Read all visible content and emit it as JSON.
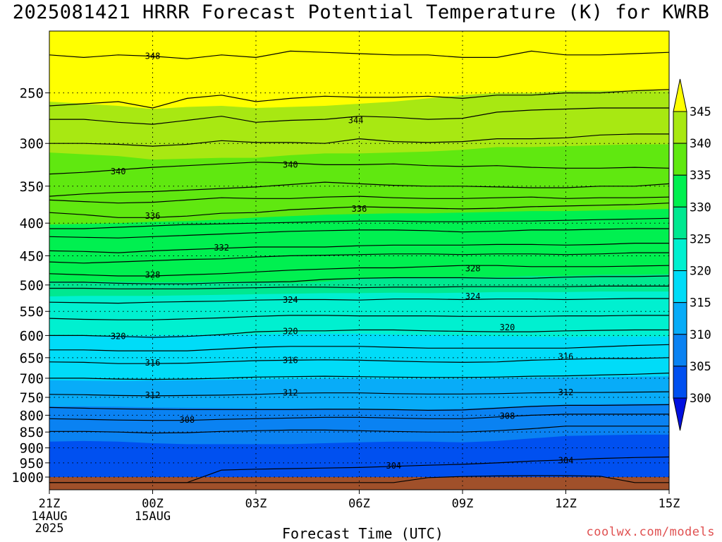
{
  "chart_data": {
    "type": "contour",
    "title": "2025081421 HRRR Forecast Potential Temperature (K) for KWRB",
    "xlabel": "Forecast Time (UTC)",
    "credit": "coolwx.com/models",
    "x_ticks": [
      {
        "hour": 0,
        "label": "21Z",
        "sub": [
          "14AUG",
          "2025"
        ]
      },
      {
        "hour": 3,
        "label": "00Z",
        "sub": [
          "15AUG"
        ]
      },
      {
        "hour": 6,
        "label": "03Z",
        "sub": []
      },
      {
        "hour": 9,
        "label": "06Z",
        "sub": []
      },
      {
        "hour": 12,
        "label": "09Z",
        "sub": []
      },
      {
        "hour": 15,
        "label": "12Z",
        "sub": []
      },
      {
        "hour": 18,
        "label": "15Z",
        "sub": []
      }
    ],
    "xlim": [
      0,
      18
    ],
    "y_ticks": [
      250,
      300,
      350,
      400,
      450,
      500,
      550,
      600,
      650,
      700,
      750,
      800,
      850,
      900,
      950,
      1000
    ],
    "ylim_hpa": [
      200,
      1020
    ],
    "y_scale": "log",
    "colorbar": {
      "levels": [
        300,
        305,
        310,
        315,
        320,
        325,
        330,
        335,
        340,
        345
      ],
      "colors": [
        "#0010e0",
        "#0050f0",
        "#0a82f2",
        "#08acf8",
        "#00dcf8",
        "#00f0d0",
        "#00e890",
        "#00f050",
        "#60e810",
        "#a8e812",
        "#ffff00"
      ],
      "under_color": "#0010e0",
      "over_color": "#ffff00"
    },
    "bands": [
      {
        "label": 345,
        "pressure": [
          258,
          260,
          262,
          265,
          263,
          262,
          264,
          263,
          262,
          260,
          258,
          255,
          252,
          250,
          250,
          248,
          248,
          248,
          248
        ]
      },
      {
        "label": 340,
        "pressure": [
          310,
          312,
          314,
          318,
          317,
          316,
          316,
          313,
          311,
          311,
          310,
          309,
          307,
          304,
          304,
          303,
          302,
          301,
          301
        ]
      },
      {
        "label": 335,
        "pressure": [
          402,
          401,
          400,
          398,
          397,
          395,
          392,
          390,
          388,
          387,
          386,
          386,
          385,
          384,
          383,
          383,
          382,
          381,
          380
        ]
      },
      {
        "label": 330,
        "pressure": [
          493,
          494,
          494,
          495,
          495,
          494,
          494,
          496,
          494,
          488,
          486,
          486,
          486,
          486,
          484,
          484,
          482,
          482,
          481
        ]
      },
      {
        "label": 325,
        "pressure": [
          521,
          520,
          520,
          520,
          519,
          518,
          517,
          516,
          515,
          515,
          514,
          515,
          514,
          513,
          513,
          513,
          512,
          512,
          512
        ]
      },
      {
        "label": 320,
        "pressure": [
          600,
          600,
          600,
          600,
          599,
          598,
          598,
          596,
          596,
          596,
          598,
          599,
          600,
          601,
          602,
          603,
          602,
          602,
          602
        ]
      },
      {
        "label": 315,
        "pressure": [
          705,
          706,
          707,
          706,
          705,
          704,
          703,
          702,
          701,
          701,
          702,
          702,
          702,
          700,
          699,
          698,
          697,
          696,
          695
        ]
      },
      {
        "label": 310,
        "pressure": [
          775,
          775,
          776,
          778,
          779,
          780,
          781,
          781,
          781,
          782,
          784,
          784,
          782,
          778,
          773,
          770,
          769,
          768,
          768
        ]
      },
      {
        "label": 305,
        "pressure": [
          880,
          878,
          880,
          885,
          888,
          888,
          888,
          888,
          885,
          882,
          880,
          880,
          882,
          878,
          870,
          862,
          860,
          858,
          858
        ]
      }
    ],
    "contours": [
      {
        "level": 348,
        "label_at": 3.0,
        "pressure": [
          218,
          220,
          218,
          219,
          221,
          218,
          220,
          215,
          216,
          217,
          218,
          218,
          220,
          220,
          215,
          218,
          218,
          217,
          216
        ]
      },
      {
        "level": 346,
        "pressure": [
          262,
          260,
          258,
          264,
          255,
          252,
          258,
          255,
          253,
          254,
          254,
          253,
          255,
          252,
          252,
          250,
          250,
          248,
          247
        ]
      },
      {
        "level": 344,
        "label_at": 8.8,
        "pressure": [
          275,
          275,
          278,
          280,
          276,
          272,
          278,
          276,
          275,
          272,
          273,
          275,
          274,
          268,
          266,
          265,
          264,
          264,
          264
        ]
      },
      {
        "level": 342,
        "pressure": [
          300,
          300,
          301,
          303,
          301,
          297,
          299,
          299,
          300,
          295,
          298,
          299,
          298,
          295,
          295,
          294,
          291,
          290,
          290
        ]
      },
      {
        "level": 340,
        "label_at": 2.0,
        "pressure": [
          335,
          333,
          330,
          327,
          325,
          323,
          321,
          322,
          324,
          324,
          323,
          325,
          326,
          325,
          327,
          328,
          328,
          327,
          328
        ]
      },
      {
        "level": 340,
        "label_at": 6.8,
        "pressure": [
          363,
          360,
          358,
          357,
          355,
          353,
          351,
          348,
          345,
          347,
          349,
          350,
          350,
          351,
          352,
          352,
          350,
          350,
          347
        ]
      },
      {
        "level": 338,
        "pressure": [
          368,
          370,
          372,
          371,
          368,
          365,
          366,
          366,
          364,
          363,
          365,
          366,
          366,
          365,
          364,
          366,
          365,
          365,
          364
        ]
      },
      {
        "level": 336,
        "label_at": 9.0,
        "pressure": [
          385,
          388,
          392,
          392,
          390,
          386,
          385,
          381,
          379,
          377,
          378,
          379,
          380,
          379,
          377,
          376,
          375,
          374,
          372
        ]
      },
      {
        "level": 334,
        "label_at": 3.0,
        "pressure": [
          408,
          408,
          406,
          404,
          402,
          401,
          400,
          399,
          398,
          397,
          397,
          398,
          398,
          397,
          397,
          396,
          395,
          394,
          393
        ]
      },
      {
        "level": 332,
        "pressure": [
          420,
          421,
          422,
          420,
          418,
          416,
          414,
          412,
          411,
          410,
          410,
          411,
          413,
          412,
          410,
          410,
          409,
          408,
          408
        ]
      },
      {
        "level": 332,
        "label_at": 5.0,
        "pressure": [
          442,
          443,
          445,
          442,
          440,
          438,
          436,
          436,
          436,
          434,
          433,
          433,
          433,
          432,
          432,
          433,
          432,
          430,
          430
        ]
      },
      {
        "level": 330,
        "pressure": [
          460,
          462,
          460,
          458,
          456,
          455,
          452,
          450,
          449,
          448,
          447,
          447,
          448,
          447,
          447,
          448,
          447,
          445,
          445
        ]
      },
      {
        "level": 328,
        "label_at": 3.0,
        "pressure": [
          480,
          482,
          484,
          484,
          482,
          480,
          477,
          474,
          472,
          470,
          470,
          468,
          466,
          466,
          468,
          468,
          468,
          467,
          466
        ]
      },
      {
        "level": 326,
        "pressure": [
          495,
          495,
          497,
          498,
          498,
          496,
          495,
          494,
          490,
          488,
          487,
          487,
          487,
          488,
          488,
          486,
          485,
          485,
          484
        ]
      },
      {
        "level": 326,
        "pressure": [
          506,
          506,
          507,
          507,
          507,
          506,
          505,
          504,
          504,
          505,
          504,
          504,
          503,
          503,
          503,
          503,
          502,
          502,
          502
        ]
      },
      {
        "level": 324,
        "label_at": 7.0,
        "pressure": [
          532,
          533,
          534,
          532,
          531,
          530,
          528,
          527,
          527,
          528,
          526,
          526,
          527,
          526,
          526,
          527,
          526,
          525,
          525
        ]
      },
      {
        "level": 322,
        "pressure": [
          564,
          566,
          567,
          567,
          565,
          563,
          560,
          558,
          558,
          559,
          559,
          559,
          560,
          560,
          560,
          559,
          559,
          558,
          558
        ]
      },
      {
        "level": 320,
        "label_at": 2.0,
        "pressure": [
          600,
          600,
          602,
          604,
          602,
          598,
          592,
          590,
          590,
          588,
          588,
          590,
          591,
          592,
          592,
          590,
          589,
          588,
          588
        ]
      },
      {
        "level": 318,
        "pressure": [
          632,
          632,
          634,
          634,
          634,
          630,
          626,
          624,
          624,
          624,
          626,
          628,
          628,
          628,
          628,
          628,
          625,
          622,
          620
        ]
      },
      {
        "level": 316,
        "label_at": 3.0,
        "pressure": [
          660,
          661,
          664,
          664,
          663,
          660,
          657,
          656,
          655,
          656,
          658,
          660,
          661,
          660,
          656,
          654,
          652,
          652,
          650
        ]
      },
      {
        "level": 314,
        "pressure": [
          700,
          700,
          702,
          703,
          702,
          700,
          697,
          696,
          695,
          696,
          697,
          698,
          698,
          697,
          695,
          694,
          692,
          690,
          687
        ]
      },
      {
        "level": 312,
        "label_at": 3.0,
        "pressure": [
          742,
          743,
          745,
          746,
          745,
          744,
          742,
          739,
          738,
          738,
          740,
          741,
          741,
          740,
          738,
          737,
          737,
          736,
          735
        ]
      },
      {
        "level": 310,
        "pressure": [
          778,
          780,
          782,
          783,
          784,
          784,
          784,
          784,
          783,
          783,
          784,
          786,
          785,
          780,
          775,
          772,
          772,
          771,
          770
        ]
      },
      {
        "level": 308,
        "label_at": 4.0,
        "pressure": [
          810,
          812,
          814,
          815,
          815,
          812,
          810,
          808,
          806,
          806,
          808,
          810,
          810,
          805,
          800,
          797,
          797,
          797,
          797
        ]
      },
      {
        "level": 306,
        "pressure": [
          848,
          848,
          850,
          853,
          852,
          848,
          846,
          844,
          844,
          846,
          848,
          850,
          850,
          846,
          840,
          832,
          832,
          832,
          832
        ]
      },
      {
        "level": 304,
        "label_at": 10.2,
        "pressure": [
          1020,
          1020,
          1020,
          1020,
          1020,
          975,
          972,
          970,
          968,
          966,
          962,
          958,
          955,
          950,
          944,
          940,
          935,
          932,
          930
        ]
      },
      {
        "level": 302,
        "pressure": [
          1020,
          1020,
          1020,
          1020,
          1020,
          1020,
          1020,
          1020,
          1020,
          1020,
          1020,
          1002,
          998,
          996,
          995,
          995,
          997,
          1020,
          1020
        ]
      }
    ],
    "contour_labels": [
      {
        "text": "348",
        "hour": 3.0,
        "hpa": 219
      },
      {
        "text": "344",
        "hour": 8.9,
        "hpa": 276
      },
      {
        "text": "340",
        "hour": 2.0,
        "hpa": 332
      },
      {
        "text": "340",
        "hour": 7.0,
        "hpa": 324
      },
      {
        "text": "336",
        "hour": 3.0,
        "hpa": 390
      },
      {
        "text": "336",
        "hour": 9.0,
        "hpa": 380
      },
      {
        "text": "332",
        "hour": 5.0,
        "hpa": 437
      },
      {
        "text": "328",
        "hour": 3.0,
        "hpa": 482
      },
      {
        "text": "328",
        "hour": 12.3,
        "hpa": 471
      },
      {
        "text": "324",
        "hour": 7.0,
        "hpa": 528
      },
      {
        "text": "324",
        "hour": 12.3,
        "hpa": 521
      },
      {
        "text": "320",
        "hour": 2.0,
        "hpa": 602
      },
      {
        "text": "320",
        "hour": 7.0,
        "hpa": 591
      },
      {
        "text": "320",
        "hour": 13.3,
        "hpa": 583
      },
      {
        "text": "316",
        "hour": 3.0,
        "hpa": 662
      },
      {
        "text": "316",
        "hour": 7.0,
        "hpa": 656
      },
      {
        "text": "316",
        "hour": 15.0,
        "hpa": 648
      },
      {
        "text": "312",
        "hour": 3.0,
        "hpa": 744
      },
      {
        "text": "312",
        "hour": 7.0,
        "hpa": 738
      },
      {
        "text": "312",
        "hour": 15.0,
        "hpa": 737
      },
      {
        "text": "308",
        "hour": 4.0,
        "hpa": 814
      },
      {
        "text": "308",
        "hour": 13.3,
        "hpa": 802
      },
      {
        "text": "304",
        "hour": 10.0,
        "hpa": 960
      },
      {
        "text": "304",
        "hour": 15.0,
        "hpa": 942
      }
    ],
    "ground": {
      "color": "#a0502a",
      "top_hpa": 1000
    },
    "grid": "dotted"
  }
}
